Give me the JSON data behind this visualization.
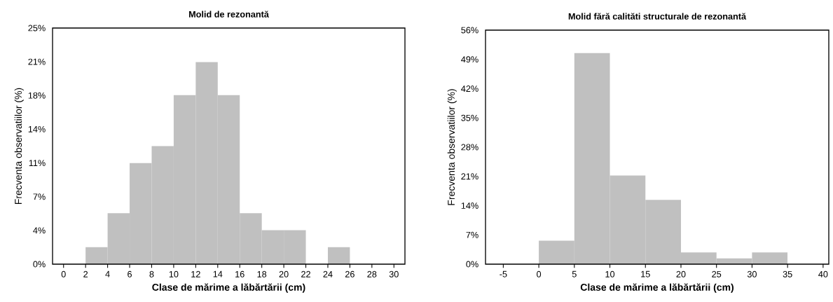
{
  "chart_data": [
    {
      "type": "histogram",
      "title": "Molid de rezonantă",
      "xlabel": "Clase de mărime a lăbărtării (cm)",
      "ylabel": "Frecventa observatiilor (%)",
      "bins": [
        2,
        4,
        6,
        8,
        10,
        12,
        14,
        16,
        18,
        20,
        22,
        24,
        26
      ],
      "values": [
        1.8,
        5.4,
        10.7,
        12.5,
        17.9,
        21.4,
        17.9,
        5.4,
        3.6,
        3.6,
        0,
        1.8
      ],
      "color": "#c0c0c0",
      "xlim": [
        -1,
        31
      ],
      "ylim": [
        0,
        25
      ],
      "xticks": [
        0,
        2,
        4,
        6,
        8,
        10,
        12,
        14,
        16,
        18,
        20,
        22,
        24,
        26,
        28,
        30
      ],
      "yticks": [
        {
          "value": 0,
          "label": "0%"
        },
        {
          "value": 3.57,
          "label": "4%"
        },
        {
          "value": 7.14,
          "label": "7%"
        },
        {
          "value": 10.71,
          "label": "11%"
        },
        {
          "value": 14.29,
          "label": "14%"
        },
        {
          "value": 17.86,
          "label": "18%"
        },
        {
          "value": 21.43,
          "label": "21%"
        },
        {
          "value": 25,
          "label": "25%"
        }
      ]
    },
    {
      "type": "histogram",
      "title": "Molid fără calităti structurale de rezonantă",
      "xlabel": "Clase de mărime a lăbărtării (cm)",
      "ylabel": "Frecventa observatiilor (%)",
      "bins": [
        0,
        5,
        10,
        15,
        20,
        25,
        30,
        35
      ],
      "values": [
        5.6,
        50.5,
        21.2,
        15.4,
        2.8,
        1.4,
        2.8
      ],
      "color": "#c0c0c0",
      "xlim": [
        -7.5,
        40.8
      ],
      "ylim": [
        0,
        56
      ],
      "xticks": [
        -5,
        0,
        5,
        10,
        15,
        20,
        25,
        30,
        35,
        40
      ],
      "yticks": [
        {
          "value": 0,
          "label": "0%"
        },
        {
          "value": 7,
          "label": "7%"
        },
        {
          "value": 14,
          "label": "14%"
        },
        {
          "value": 21,
          "label": "21%"
        },
        {
          "value": 28,
          "label": "28%"
        },
        {
          "value": 35,
          "label": "35%"
        },
        {
          "value": 42,
          "label": "42%"
        },
        {
          "value": 49,
          "label": "49%"
        },
        {
          "value": 56,
          "label": "56%"
        }
      ]
    }
  ]
}
